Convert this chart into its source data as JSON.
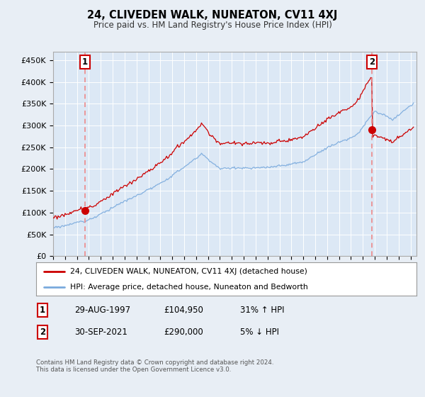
{
  "title": "24, CLIVEDEN WALK, NUNEATON, CV11 4XJ",
  "subtitle": "Price paid vs. HM Land Registry's House Price Index (HPI)",
  "legend_line1": "24, CLIVEDEN WALK, NUNEATON, CV11 4XJ (detached house)",
  "legend_line2": "HPI: Average price, detached house, Nuneaton and Bedworth",
  "point1_date": "29-AUG-1997",
  "point1_price": "£104,950",
  "point1_hpi": "31% ↑ HPI",
  "point1_year": 1997.66,
  "point1_value": 104950,
  "point2_date": "30-SEP-2021",
  "point2_price": "£290,000",
  "point2_hpi": "5% ↓ HPI",
  "point2_year": 2021.75,
  "point2_value": 290000,
  "red_color": "#cc0000",
  "blue_color": "#7aaadd",
  "dashed_color": "#ee8888",
  "background_color": "#e8eef5",
  "plot_bg_color": "#dce8f5",
  "grid_color": "#ffffff",
  "ylim": [
    0,
    470000
  ],
  "xlim_start": 1995.0,
  "xlim_end": 2025.5,
  "footer": "Contains HM Land Registry data © Crown copyright and database right 2024.\nThis data is licensed under the Open Government Licence v3.0.",
  "yticks": [
    0,
    50000,
    100000,
    150000,
    200000,
    250000,
    300000,
    350000,
    400000,
    450000
  ],
  "ytick_labels": [
    "£0",
    "£50K",
    "£100K",
    "£150K",
    "£200K",
    "£250K",
    "£300K",
    "£350K",
    "£400K",
    "£450K"
  ]
}
